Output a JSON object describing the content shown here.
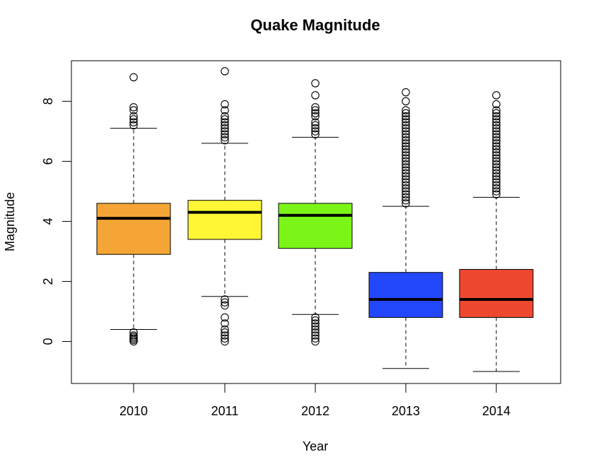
{
  "chart_data": {
    "type": "box",
    "title": "Quake Magnitude",
    "xlabel": "Year",
    "ylabel": "Magnitude",
    "ylim": [
      -1.4,
      9.35
    ],
    "yticks": [
      0,
      2,
      4,
      6,
      8
    ],
    "grid": false,
    "legend": "none",
    "categories": [
      "2010",
      "2011",
      "2012",
      "2013",
      "2014"
    ],
    "boxes": [
      {
        "category": "2010",
        "color": "#F5A535",
        "whisker_low": 0.4,
        "q1": 2.9,
        "median": 4.1,
        "q3": 4.6,
        "whisker_high": 7.1,
        "outliers": [
          8.8,
          7.8,
          7.7,
          7.5,
          7.4,
          7.3,
          7.2,
          0.3,
          0.2,
          0.15,
          0.1,
          0.05,
          0.0
        ]
      },
      {
        "category": "2011",
        "color": "#FFF735",
        "whisker_low": 1.5,
        "q1": 3.4,
        "median": 4.3,
        "q3": 4.7,
        "whisker_high": 6.6,
        "outliers": [
          9.0,
          7.9,
          7.7,
          7.5,
          7.4,
          7.3,
          7.2,
          7.1,
          7.0,
          6.9,
          6.8,
          6.7,
          1.4,
          1.3,
          1.2,
          0.8,
          0.6,
          0.4,
          0.3,
          0.2,
          0.1,
          0.0
        ]
      },
      {
        "category": "2012",
        "color": "#7BF518",
        "whisker_low": 0.9,
        "q1": 3.1,
        "median": 4.2,
        "q3": 4.6,
        "whisker_high": 6.8,
        "outliers": [
          8.6,
          8.2,
          7.8,
          7.7,
          7.6,
          7.5,
          7.3,
          7.2,
          7.1,
          7.0,
          6.9,
          0.8,
          0.7,
          0.6,
          0.5,
          0.4,
          0.3,
          0.2,
          0.1,
          0.0
        ]
      },
      {
        "category": "2013",
        "color": "#2347FB",
        "whisker_low": -0.9,
        "q1": 0.8,
        "median": 1.4,
        "q3": 2.3,
        "whisker_high": 4.5,
        "outlier_min": 4.6,
        "outlier_max": 7.7,
        "outlier_step": 0.1,
        "outliers": [
          8.3,
          8.0
        ]
      },
      {
        "category": "2014",
        "color": "#EE4831",
        "whisker_low": -1.0,
        "q1": 0.8,
        "median": 1.4,
        "q3": 2.4,
        "whisker_high": 4.8,
        "outlier_min": 4.9,
        "outlier_max": 7.7,
        "outlier_step": 0.1,
        "outliers": [
          8.2,
          7.9
        ]
      }
    ]
  }
}
